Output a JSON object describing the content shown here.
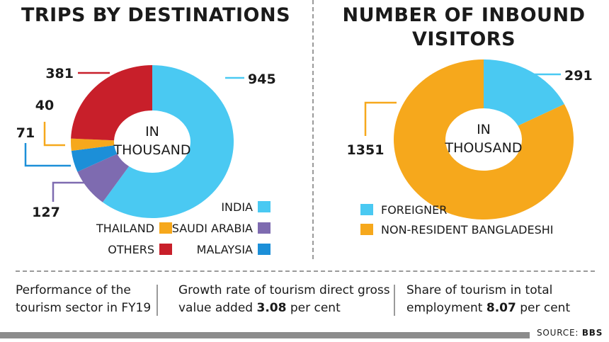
{
  "chart_data": [
    {
      "type": "pie",
      "title": "TRIPS BY DESTINATIONS",
      "center_label": [
        "IN",
        "THOUSAND"
      ],
      "categories": [
        "INDIA",
        "SAUDI ARABIA",
        "MALAYSIA",
        "THAILAND",
        "OTHERS"
      ],
      "values": [
        945,
        127,
        71,
        40,
        381
      ],
      "colors": [
        "#4ac9f2",
        "#7e6bb0",
        "#1c8fd8",
        "#f6a81c",
        "#c81f2a"
      ],
      "legend": "bottom"
    },
    {
      "type": "pie",
      "title": "NUMBER OF INBOUND VISITORS",
      "center_label": [
        "IN",
        "THOUSAND"
      ],
      "categories": [
        "FOREIGNER",
        "NON-RESIDENT BANGLADESHI"
      ],
      "values": [
        291,
        1351
      ],
      "colors": [
        "#4ac9f2",
        "#f6a81c"
      ],
      "legend": "bottom"
    }
  ],
  "footer": {
    "item1": "Performance of the tourism sector in FY19",
    "item2_text": "Growth rate of tourism direct gross value added",
    "item2_value": "3.08",
    "item2_unit": "per cent",
    "item3_text": "Share of tourism in total employment",
    "item3_value": "8.07",
    "item3_unit": "per cent"
  },
  "source": {
    "label": "SOURCE:",
    "name": "BBS"
  }
}
